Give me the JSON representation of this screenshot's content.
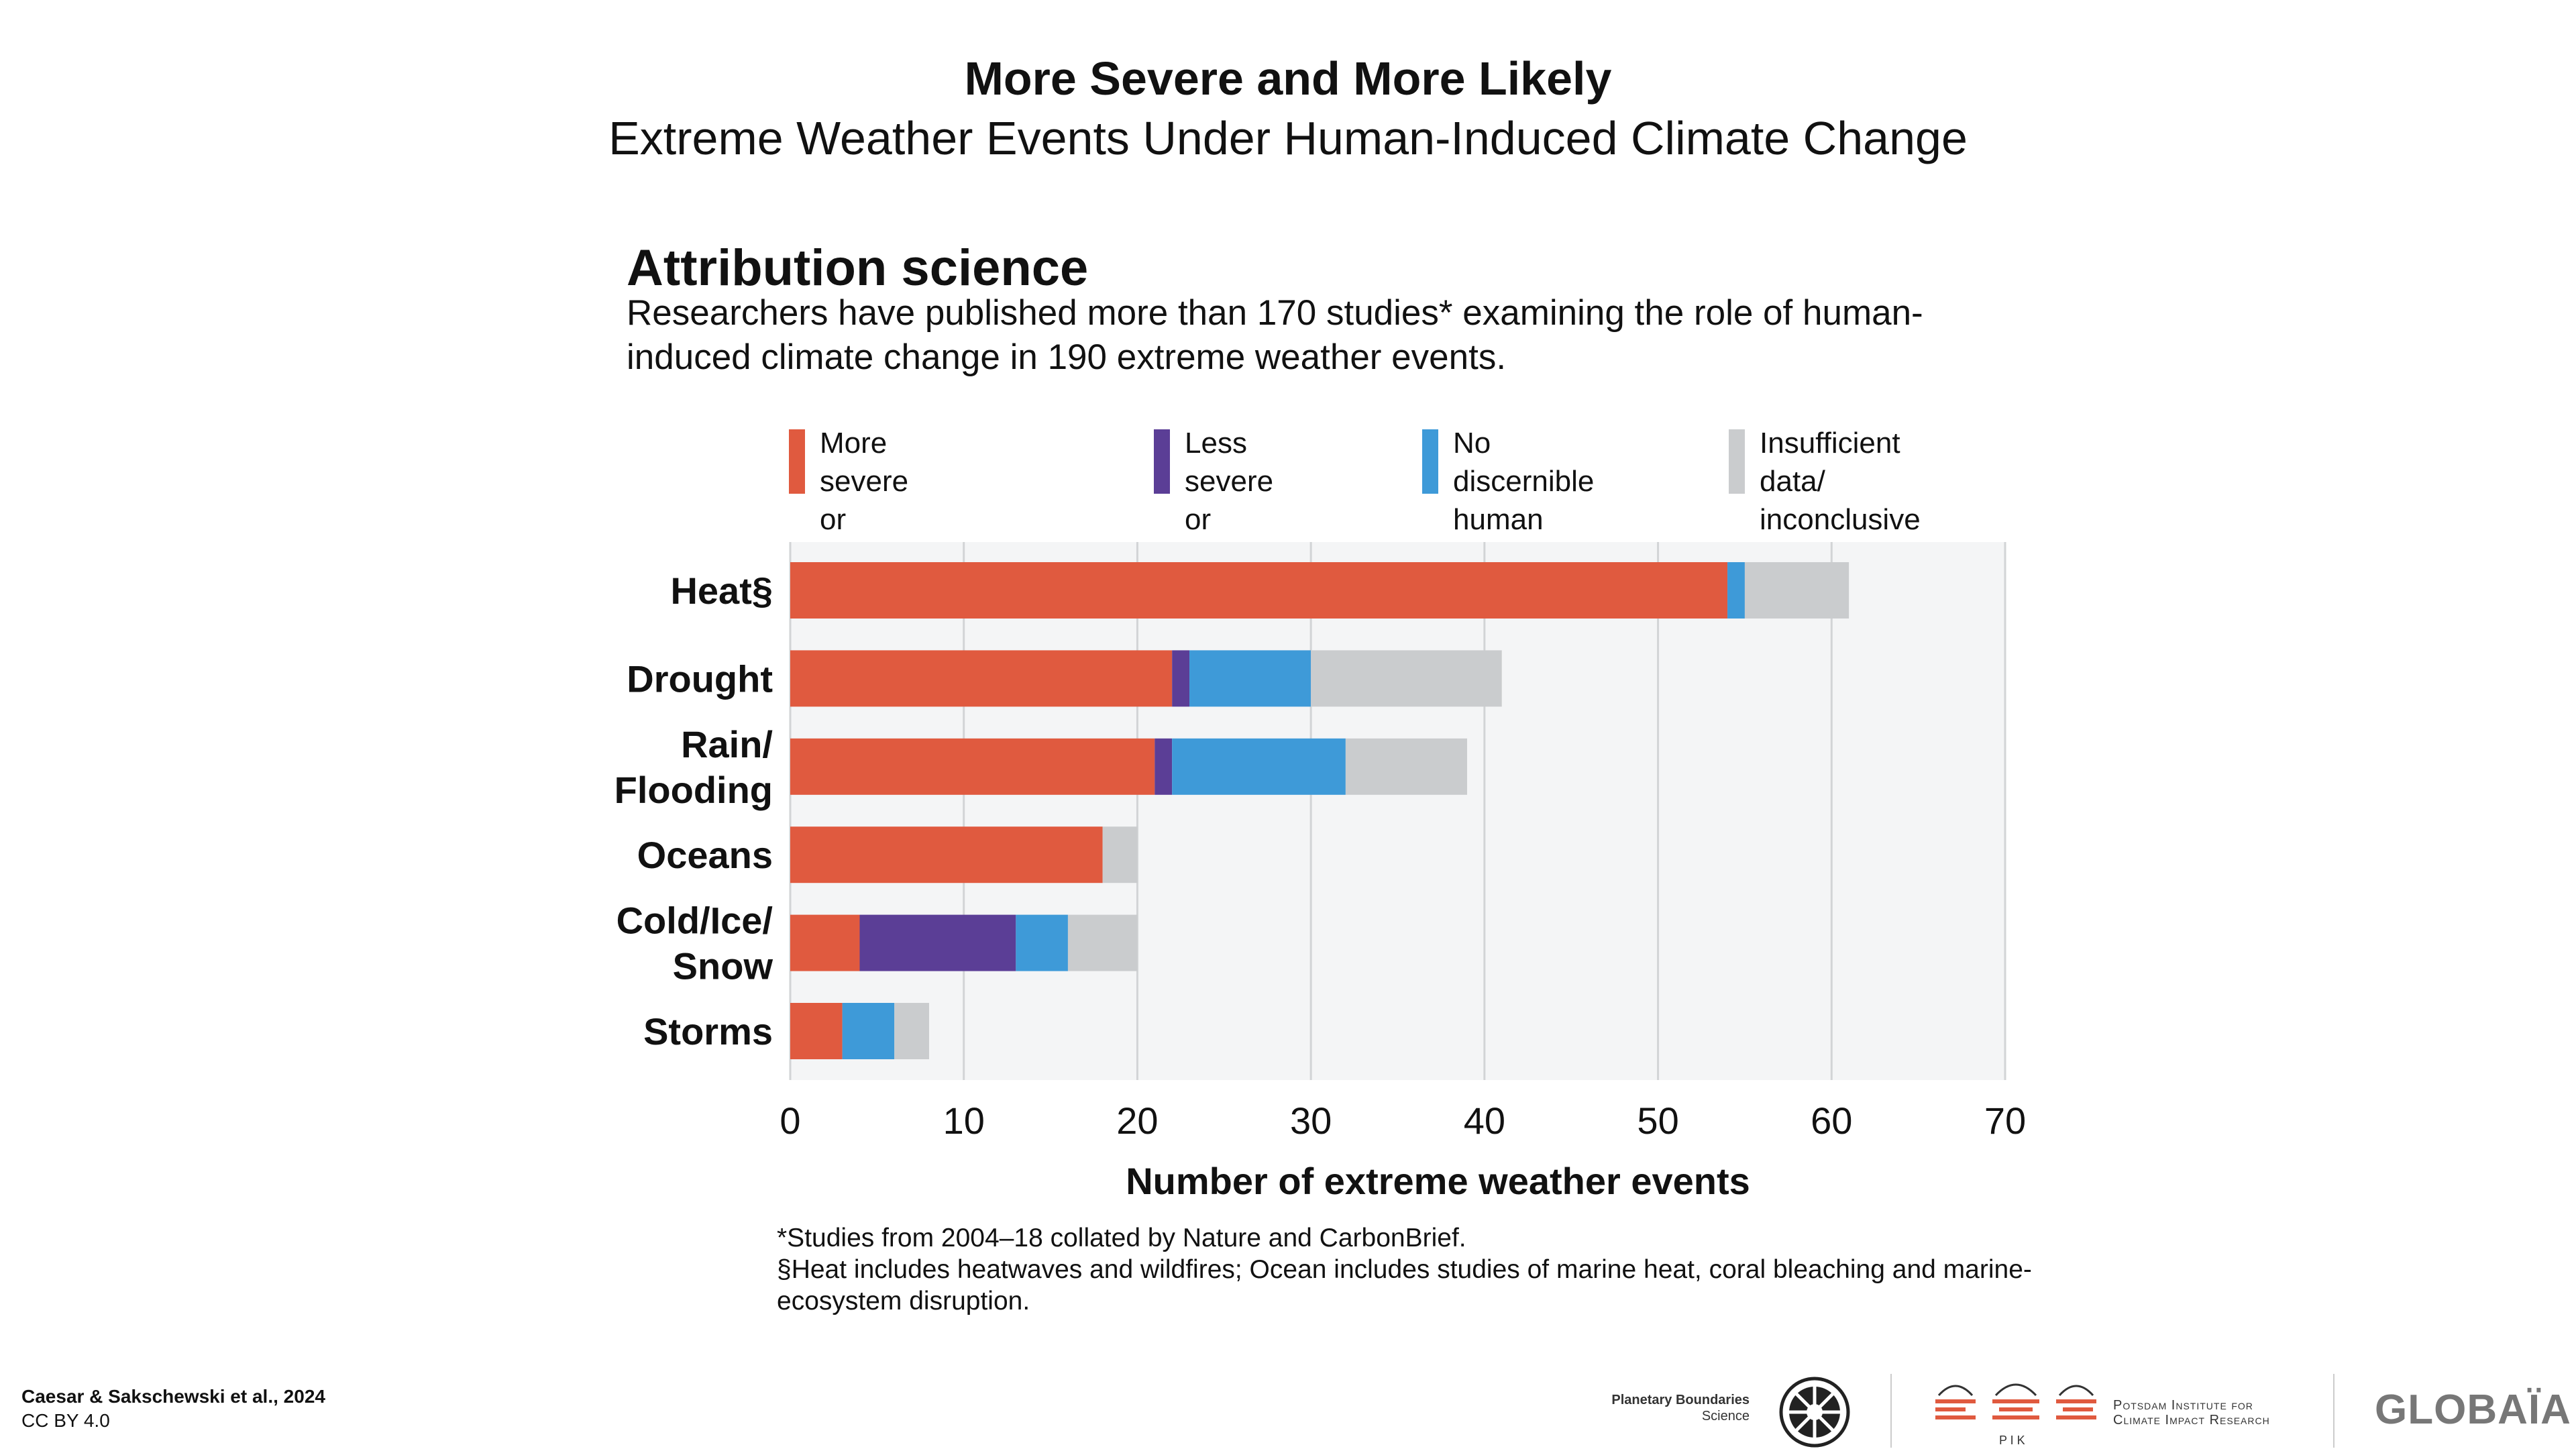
{
  "header": {
    "title": "More Severe and More Likely",
    "subtitle": "Extreme Weather Events Under Human-Induced Climate Change"
  },
  "section": {
    "title": "Attribution science",
    "description": "Researchers have published more than 170 studies* examining the role of human-induced climate change in 190 extreme weather events."
  },
  "legend": [
    {
      "label": "More severe or more\nlikely to occur",
      "color": "#E05A3F"
    },
    {
      "label": "Less severe or\nlikely to occur",
      "color": "#5B3E96"
    },
    {
      "label": "No discernible\nhuman influence",
      "color": "#3E9AD8"
    },
    {
      "label": "Insufficient data/\ninconclusive",
      "color": "#CACCCE"
    }
  ],
  "chart_data": {
    "type": "bar",
    "orientation": "horizontal",
    "stacked": true,
    "categories": [
      [
        "Heat§"
      ],
      [
        "Drought"
      ],
      [
        "Rain/",
        "Flooding"
      ],
      [
        "Oceans"
      ],
      [
        "Cold/Ice/",
        "Snow"
      ],
      [
        "Storms"
      ]
    ],
    "series": [
      {
        "name": "More severe or more likely to occur",
        "color": "#E05A3F",
        "values": [
          54,
          22,
          21,
          18,
          4,
          3
        ]
      },
      {
        "name": "Less severe or likely to occur",
        "color": "#5B3E96",
        "values": [
          0,
          1,
          1,
          0,
          9,
          0
        ]
      },
      {
        "name": "No discernible human influence",
        "color": "#3E9AD8",
        "values": [
          1,
          7,
          10,
          0,
          3,
          3
        ]
      },
      {
        "name": "Insufficient data/ inconclusive",
        "color": "#CACCCE",
        "values": [
          6,
          11,
          7,
          2,
          4,
          2
        ]
      }
    ],
    "xlim": [
      0,
      70
    ],
    "xticks": [
      0,
      10,
      20,
      30,
      40,
      50,
      60,
      70
    ],
    "xlabel": "Number of extreme weather events",
    "grid": "vertical",
    "plot_background": "#F4F5F6"
  },
  "footnotes": [
    "*Studies from 2004–18 collated by Nature and CarbonBrief.",
    "§Heat includes heatwaves and wildfires; Ocean includes studies of marine heat, coral bleaching and marine-ecosystem disruption."
  ],
  "credit": {
    "authors": "Caesar & Sakschewski et al., 2024",
    "license": "CC BY 4.0"
  },
  "logos": {
    "pbs_line1": "Planetary Boundaries",
    "pbs_line2": "Science",
    "pik_line1": "Potsdam Institute for",
    "pik_line2": "Climate Impact Research",
    "pik_caption": "P I K",
    "globaia": "GLOBAÏA"
  }
}
